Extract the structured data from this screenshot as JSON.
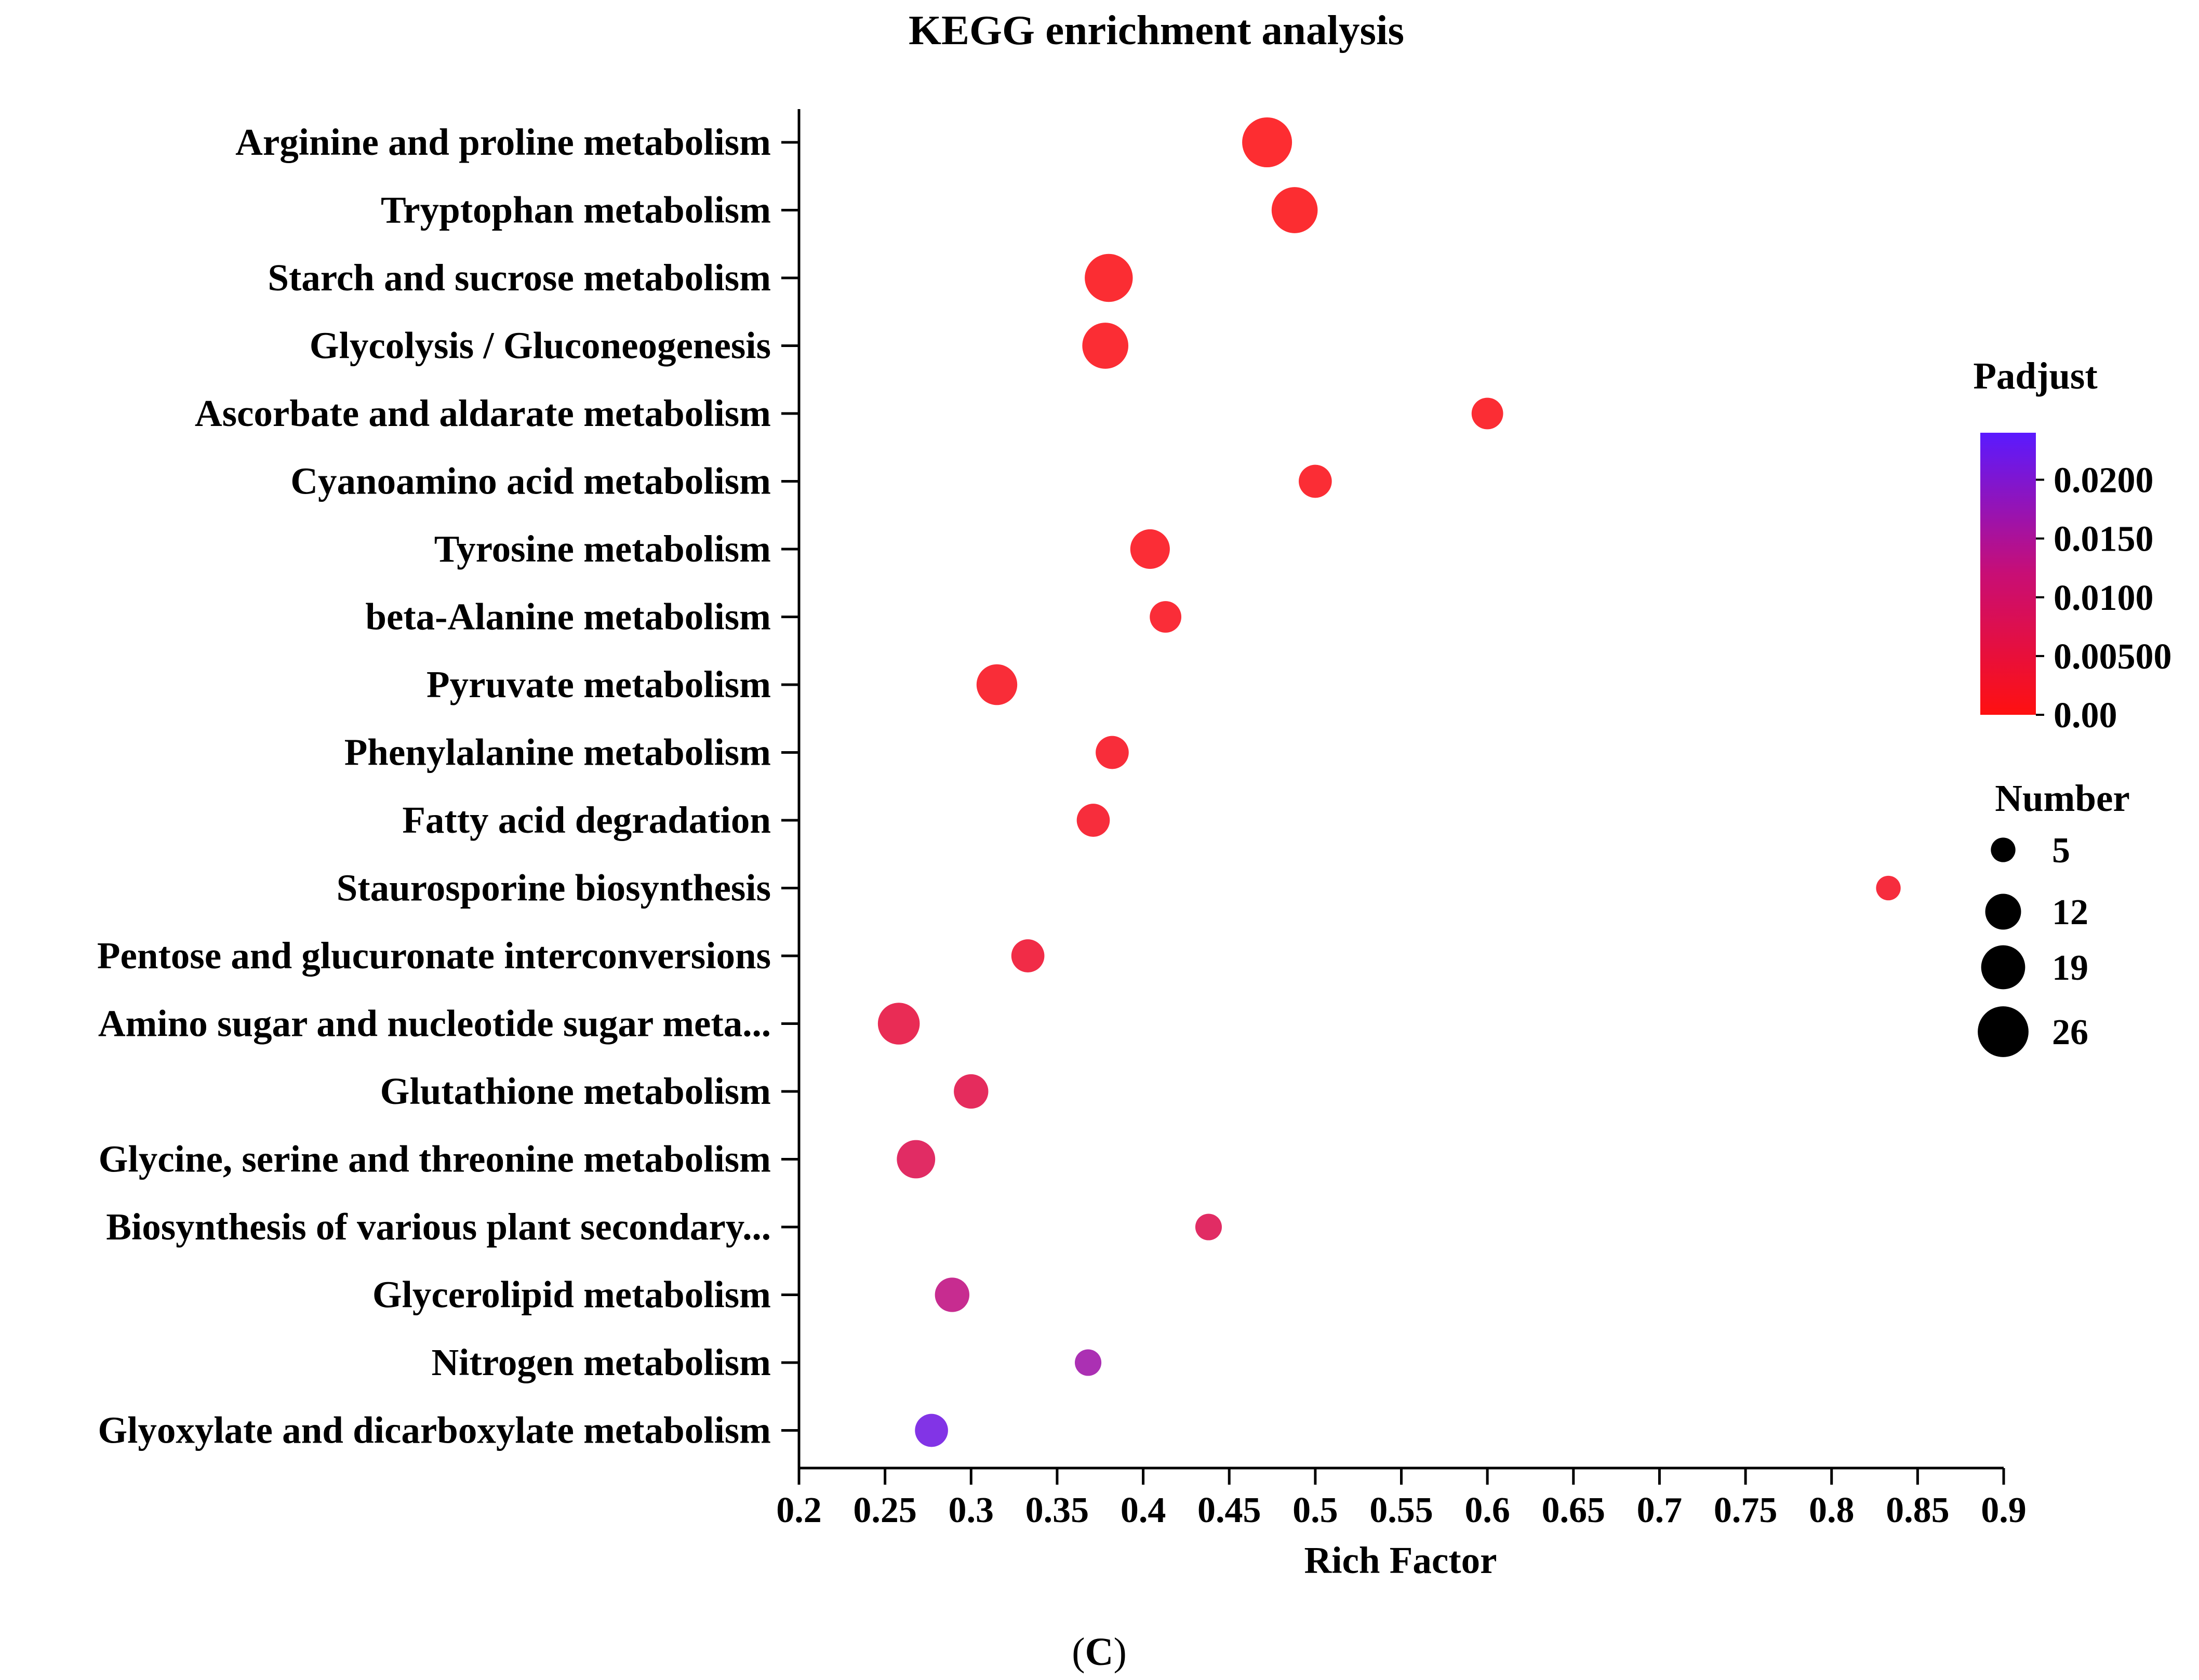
{
  "chart_data": {
    "type": "scatter",
    "subtype": "bubble",
    "title": "KEGG enrichment analysis",
    "xlabel": "Rich Factor",
    "ylabel": "",
    "xlim": [
      0.2,
      0.9
    ],
    "xticks": [
      "0.2",
      "0.25",
      "0.3",
      "0.35",
      "0.4",
      "0.45",
      "0.5",
      "0.55",
      "0.6",
      "0.65",
      "0.7",
      "0.75",
      "0.8",
      "0.85",
      "0.9"
    ],
    "colors": {
      "low": "#ff1010",
      "high": "#5a1aff",
      "axis": "#000000"
    },
    "points": [
      {
        "category": "Arginine and proline metabolism",
        "rich_factor": 0.472,
        "number": 25,
        "padjust": 0.0005
      },
      {
        "category": "Tryptophan metabolism",
        "rich_factor": 0.488,
        "number": 21,
        "padjust": 0.0006
      },
      {
        "category": "Starch and sucrose metabolism",
        "rich_factor": 0.38,
        "number": 23,
        "padjust": 0.0008
      },
      {
        "category": "Glycolysis / Gluconeogenesis",
        "rich_factor": 0.378,
        "number": 21,
        "padjust": 0.0009
      },
      {
        "category": "Ascorbate and aldarate metabolism",
        "rich_factor": 0.6,
        "number": 9,
        "padjust": 0.001
      },
      {
        "category": "Cyanoamino acid metabolism",
        "rich_factor": 0.5,
        "number": 10,
        "padjust": 0.0011
      },
      {
        "category": "Tyrosine metabolism",
        "rich_factor": 0.404,
        "number": 15,
        "padjust": 0.0012
      },
      {
        "category": "beta-Alanine metabolism",
        "rich_factor": 0.413,
        "number": 9,
        "padjust": 0.0014
      },
      {
        "category": "Pyruvate metabolism",
        "rich_factor": 0.315,
        "number": 16,
        "padjust": 0.0015
      },
      {
        "category": "Phenylalanine metabolism",
        "rich_factor": 0.382,
        "number": 10,
        "padjust": 0.0018
      },
      {
        "category": "Fatty acid degradation",
        "rich_factor": 0.371,
        "number": 10,
        "padjust": 0.002
      },
      {
        "category": "Staurosporine biosynthesis",
        "rich_factor": 0.833,
        "number": 5,
        "padjust": 0.0022
      },
      {
        "category": "Pentose and glucuronate interconversions",
        "rich_factor": 0.333,
        "number": 10,
        "padjust": 0.0035
      },
      {
        "category": "Amino sugar and nucleotide sugar meta...",
        "rich_factor": 0.258,
        "number": 17,
        "padjust": 0.0055
      },
      {
        "category": "Glutathione metabolism",
        "rich_factor": 0.3,
        "number": 11,
        "padjust": 0.0065
      },
      {
        "category": "Glycine, serine and threonine metabolism",
        "rich_factor": 0.268,
        "number": 14,
        "padjust": 0.0075
      },
      {
        "category": "Biosynthesis of various plant secondary...",
        "rich_factor": 0.438,
        "number": 6,
        "padjust": 0.0075
      },
      {
        "category": "Glycerolipid metabolism",
        "rich_factor": 0.289,
        "number": 11,
        "padjust": 0.013
      },
      {
        "category": "Nitrogen metabolism",
        "rich_factor": 0.368,
        "number": 6,
        "padjust": 0.0165
      },
      {
        "category": "Glyoxylate and dicarboxylate metabolism",
        "rich_factor": 0.277,
        "number": 10,
        "padjust": 0.0215
      }
    ],
    "color_legend": {
      "title": "Padjust",
      "range": [
        0,
        0.024
      ],
      "ticks": [
        {
          "value": 0.02,
          "label": "0.0200"
        },
        {
          "value": 0.015,
          "label": "0.0150"
        },
        {
          "value": 0.01,
          "label": "0.0100"
        },
        {
          "value": 0.005,
          "label": "0.00500"
        },
        {
          "value": 0,
          "label": "0.00"
        }
      ]
    },
    "size_legend": {
      "title": "Number",
      "entries": [
        {
          "value": 5,
          "label": "5"
        },
        {
          "value": 12,
          "label": "12"
        },
        {
          "value": 19,
          "label": "19"
        },
        {
          "value": 26,
          "label": "26"
        }
      ]
    }
  },
  "panel_label": {
    "open": "(",
    "letter": "C",
    "close": ")"
  }
}
